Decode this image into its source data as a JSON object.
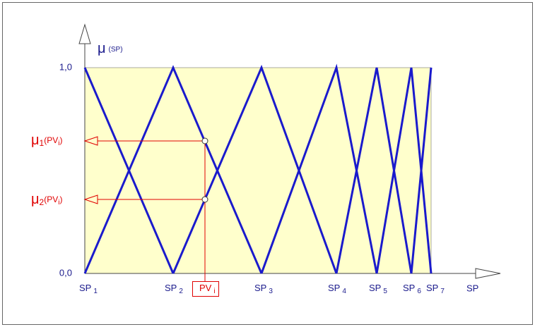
{
  "axis": {
    "y_symbol": "μ",
    "y_arg": "(SP)",
    "x_label": "SP",
    "top_label": "1,0",
    "bottom_label": "0,0"
  },
  "sp_labels": [
    {
      "text": "SP",
      "sub": "1"
    },
    {
      "text": "SP",
      "sub": "2"
    },
    {
      "text": "SP",
      "sub": "3"
    },
    {
      "text": "SP",
      "sub": "4"
    },
    {
      "text": "SP",
      "sub": "5"
    },
    {
      "text": "SP",
      "sub": "6"
    },
    {
      "text": "SP",
      "sub": "7"
    }
  ],
  "pv_label": {
    "text": "PV",
    "sub": "i"
  },
  "mu_labels": [
    {
      "symbol": "μ",
      "index": "1",
      "arg": "(PV",
      "arg_index": "i",
      "close": ")"
    },
    {
      "symbol": "μ",
      "index": "2",
      "arg": "(PV",
      "arg_index": "i",
      "close": ")"
    }
  ]
}
